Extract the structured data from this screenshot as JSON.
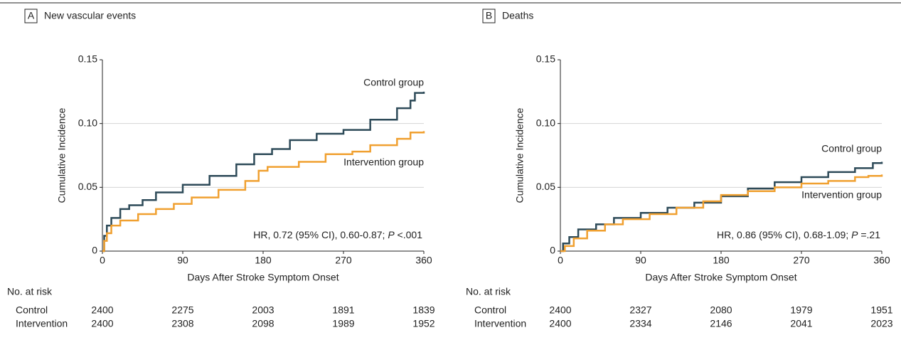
{
  "chart_data": [
    {
      "type": "line",
      "step": true,
      "panel": "A",
      "title": "New vascular events",
      "x_label": "Days After Stroke Symptom Onset",
      "y_label": "Cumulative Incidence",
      "xlim": [
        0,
        360
      ],
      "xticks": [
        0,
        90,
        180,
        270,
        360
      ],
      "ylim": [
        0,
        0.15
      ],
      "yticks": [
        0,
        0.05,
        {
          "value": 0.1,
          "label": "0.10"
        },
        0.15
      ],
      "grid": true,
      "series": [
        {
          "name": "Control group",
          "color": "#2d4a58",
          "x": [
            0,
            2,
            5,
            10,
            20,
            30,
            45,
            60,
            90,
            120,
            150,
            170,
            190,
            210,
            240,
            270,
            300,
            330,
            345,
            350,
            360
          ],
          "values": [
            0,
            0.012,
            0.02,
            0.026,
            0.033,
            0.036,
            0.04,
            0.046,
            0.052,
            0.059,
            0.068,
            0.076,
            0.08,
            0.087,
            0.092,
            0.095,
            0.103,
            0.112,
            0.118,
            0.124,
            0.125
          ]
        },
        {
          "name": "Intervention group",
          "color": "#f0a030",
          "x": [
            0,
            2,
            5,
            10,
            20,
            40,
            60,
            80,
            100,
            130,
            160,
            175,
            185,
            220,
            250,
            280,
            300,
            330,
            345,
            360
          ],
          "values": [
            0,
            0.008,
            0.014,
            0.02,
            0.024,
            0.029,
            0.033,
            0.037,
            0.042,
            0.048,
            0.055,
            0.063,
            0.066,
            0.07,
            0.076,
            0.078,
            0.083,
            0.088,
            0.093,
            0.094
          ]
        }
      ],
      "annotation": [
        "HR, 0.72 (95% CI), 0.60-0.87; ",
        "P",
        " <.001"
      ],
      "risk_table": {
        "title": "No. at risk",
        "rows": [
          {
            "name": "Control",
            "values": [
              2400,
              2275,
              2003,
              1891,
              1839
            ]
          },
          {
            "name": "Intervention",
            "values": [
              2400,
              2308,
              2098,
              1989,
              1952
            ]
          }
        ]
      }
    },
    {
      "type": "line",
      "step": true,
      "panel": "B",
      "title": "Deaths",
      "x_label": "Days After Stroke Symptom Onset",
      "y_label": "Cumulative Incidence",
      "xlim": [
        0,
        360
      ],
      "xticks": [
        0,
        90,
        180,
        270,
        360
      ],
      "ylim": [
        0,
        0.15
      ],
      "yticks": [
        0,
        0.05,
        {
          "value": 0.1,
          "label": "0.10"
        },
        0.15
      ],
      "grid": true,
      "series": [
        {
          "name": "Control group",
          "color": "#2d4a58",
          "x": [
            0,
            3,
            10,
            20,
            40,
            60,
            90,
            120,
            150,
            180,
            210,
            240,
            270,
            300,
            330,
            350,
            360
          ],
          "values": [
            0,
            0.006,
            0.011,
            0.017,
            0.021,
            0.026,
            0.03,
            0.034,
            0.038,
            0.043,
            0.049,
            0.054,
            0.058,
            0.062,
            0.065,
            0.069,
            0.07
          ]
        },
        {
          "name": "Intervention group",
          "color": "#f0a030",
          "x": [
            0,
            5,
            15,
            30,
            50,
            70,
            100,
            130,
            160,
            180,
            210,
            240,
            270,
            300,
            330,
            345,
            360
          ],
          "values": [
            0,
            0.004,
            0.01,
            0.016,
            0.021,
            0.025,
            0.029,
            0.034,
            0.039,
            0.044,
            0.047,
            0.05,
            0.053,
            0.055,
            0.058,
            0.059,
            0.06
          ]
        }
      ],
      "annotation": [
        "HR, 0.86 (95% CI), 0.68-1.09; ",
        "P",
        " =.21"
      ],
      "risk_table": {
        "title": "No. at risk",
        "rows": [
          {
            "name": "Control",
            "values": [
              2400,
              2327,
              2080,
              1979,
              1951
            ]
          },
          {
            "name": "Intervention",
            "values": [
              2400,
              2334,
              2146,
              2041,
              2023
            ]
          }
        ]
      }
    }
  ]
}
